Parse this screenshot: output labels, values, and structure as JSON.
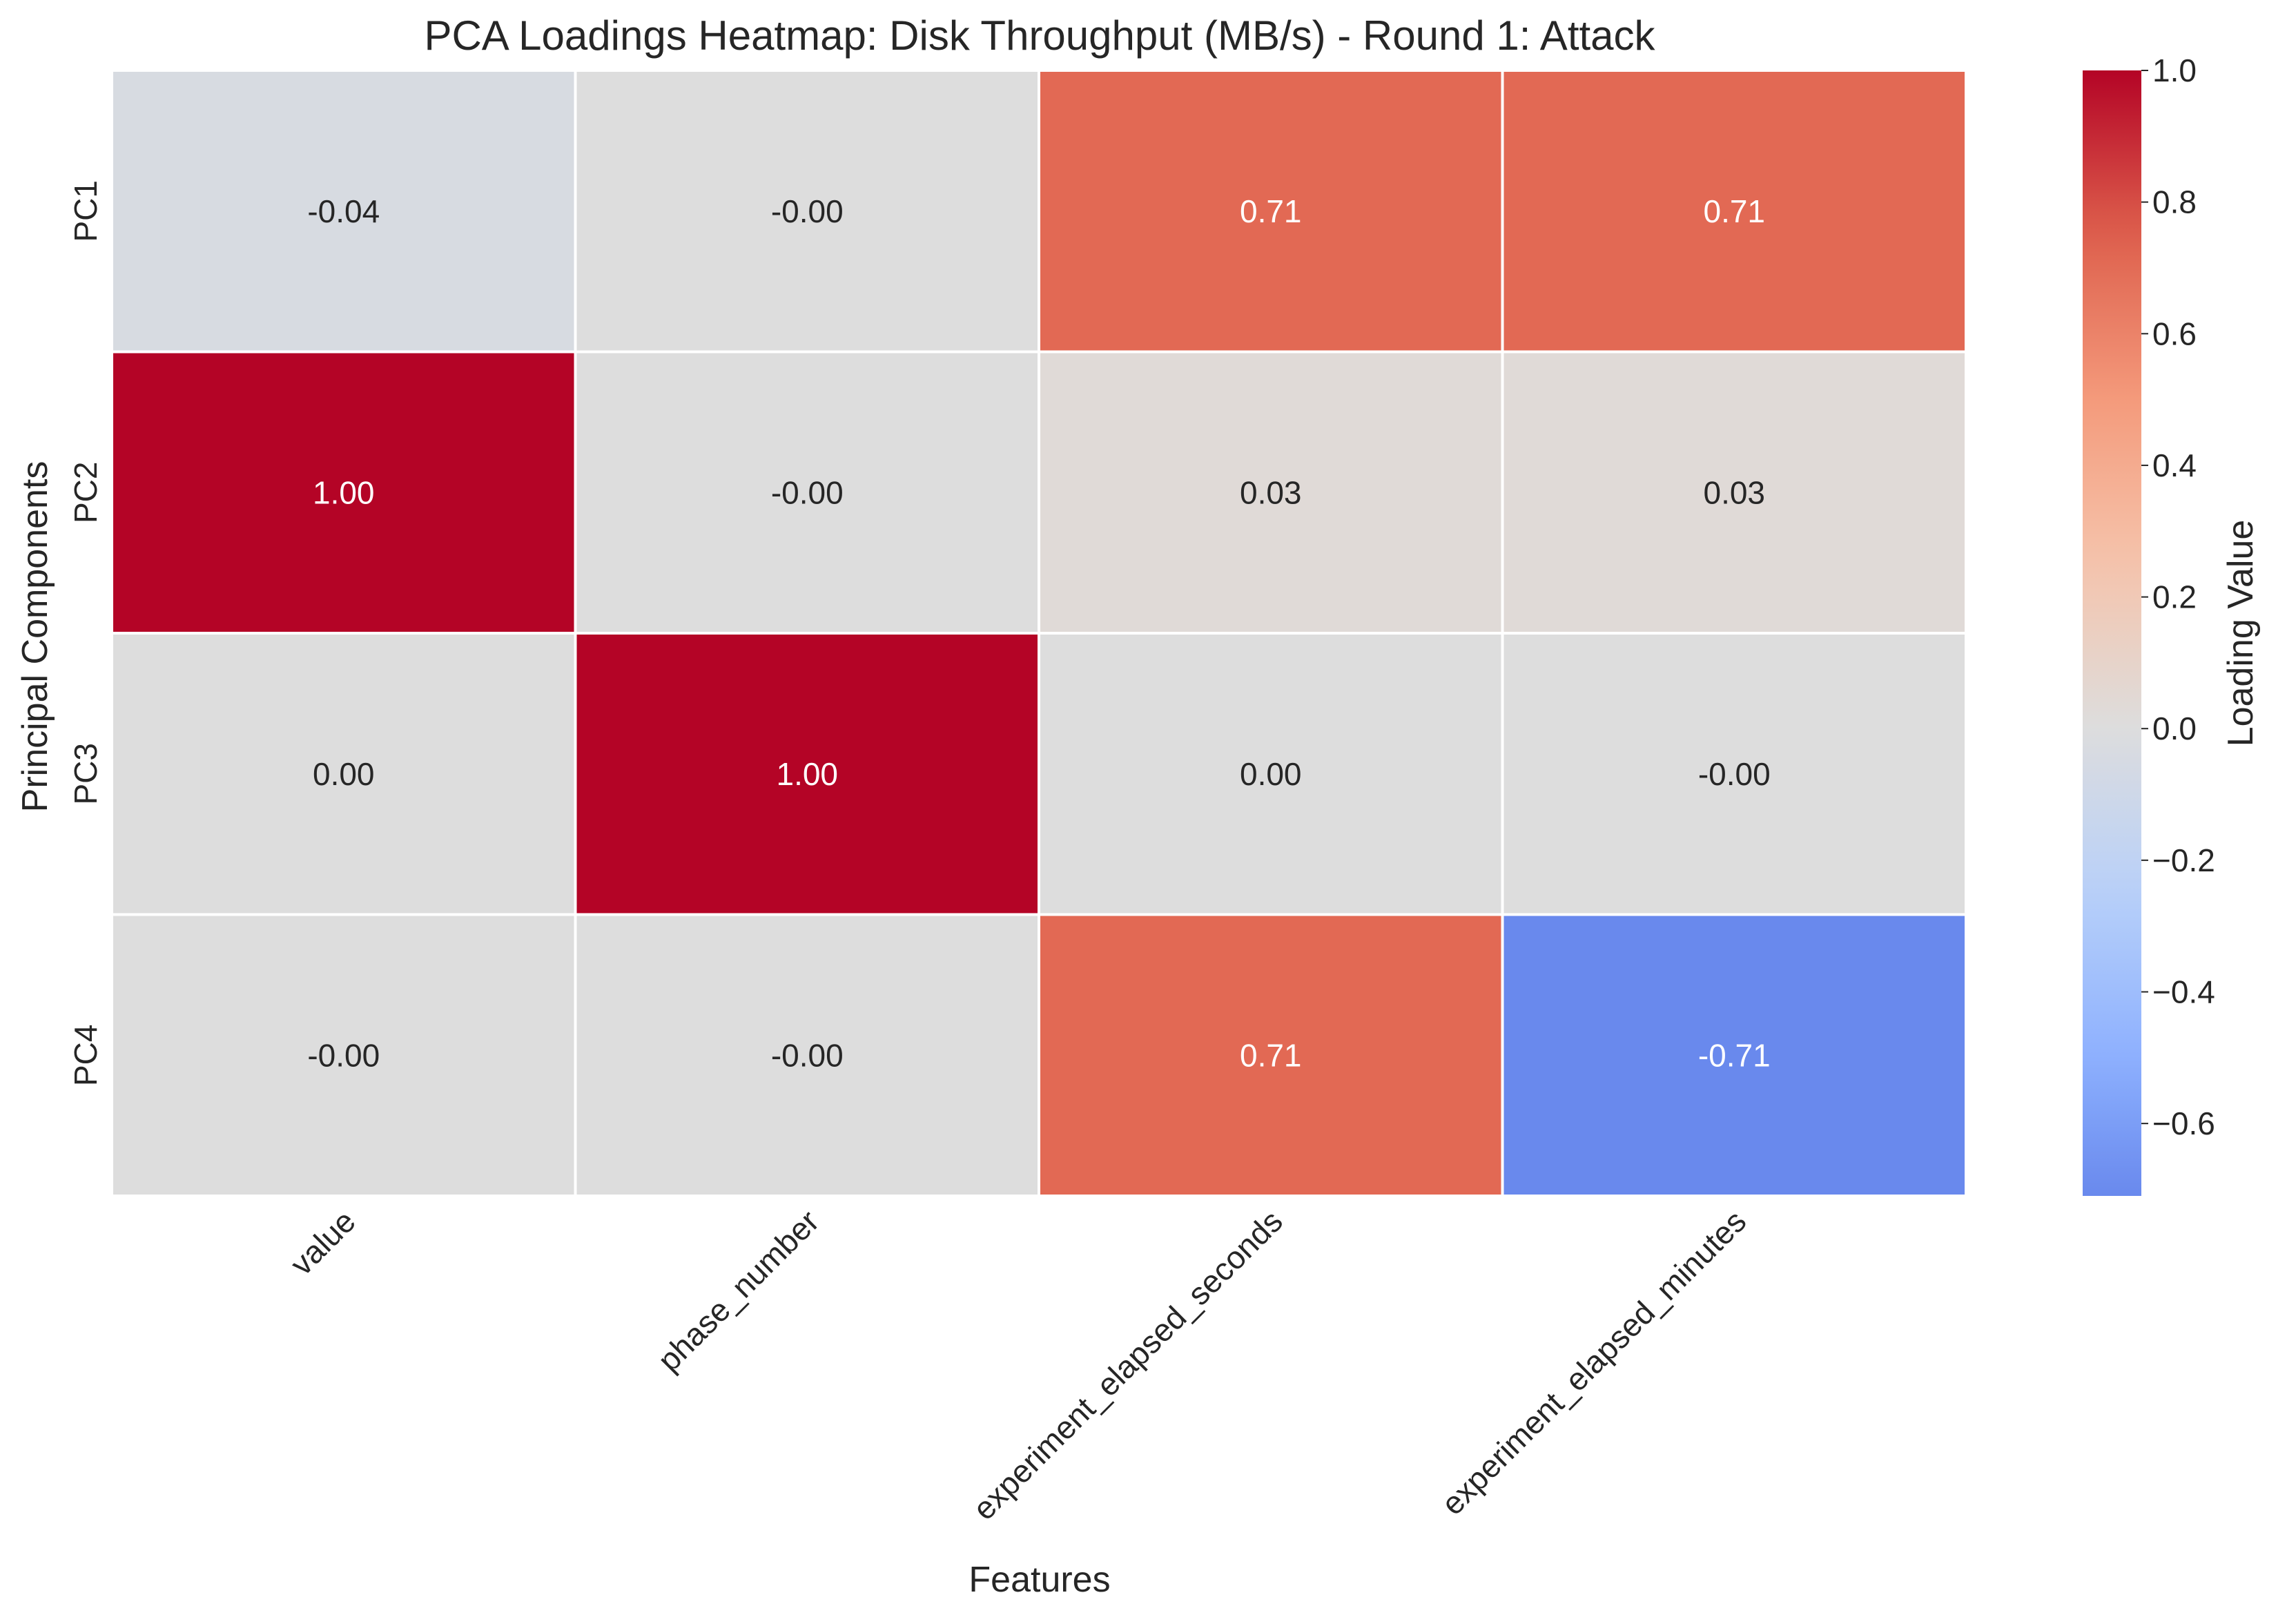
{
  "chart_data": {
    "type": "heatmap",
    "title": "PCA Loadings Heatmap: Disk Throughput (MB/s) - Round 1: Attack",
    "xlabel": "Features",
    "ylabel": "Principal Components",
    "x_categories": [
      "value",
      "phase_number",
      "experiment_elapsed_seconds",
      "experiment_elapsed_minutes"
    ],
    "y_categories": [
      "PC1",
      "PC2",
      "PC3",
      "PC4"
    ],
    "values": [
      [
        -0.04,
        -0.0,
        0.71,
        0.71
      ],
      [
        1.0,
        -0.0,
        0.03,
        0.03
      ],
      [
        0.0,
        1.0,
        0.0,
        -0.0
      ],
      [
        -0.0,
        -0.0,
        0.71,
        -0.71
      ]
    ],
    "cell_labels": [
      [
        "-0.04",
        "-0.00",
        "0.71",
        "0.71"
      ],
      [
        "1.00",
        "-0.00",
        "0.03",
        "0.03"
      ],
      [
        "0.00",
        "1.00",
        "0.00",
        "-0.00"
      ],
      [
        "-0.00",
        "-0.00",
        "0.71",
        "-0.71"
      ]
    ],
    "colormap": "coolwarm",
    "colorbar": {
      "label": "Loading Value",
      "range": [
        -0.71,
        1.0
      ],
      "tick_values": [
        1.0,
        0.8,
        0.6,
        0.4,
        0.2,
        0.0,
        -0.2,
        -0.4,
        -0.6
      ],
      "tick_labels": [
        "1.0",
        "0.8",
        "0.6",
        "0.4",
        "0.2",
        "0.0",
        "−0.2",
        "−0.4",
        "−0.6"
      ]
    },
    "grid": false
  }
}
